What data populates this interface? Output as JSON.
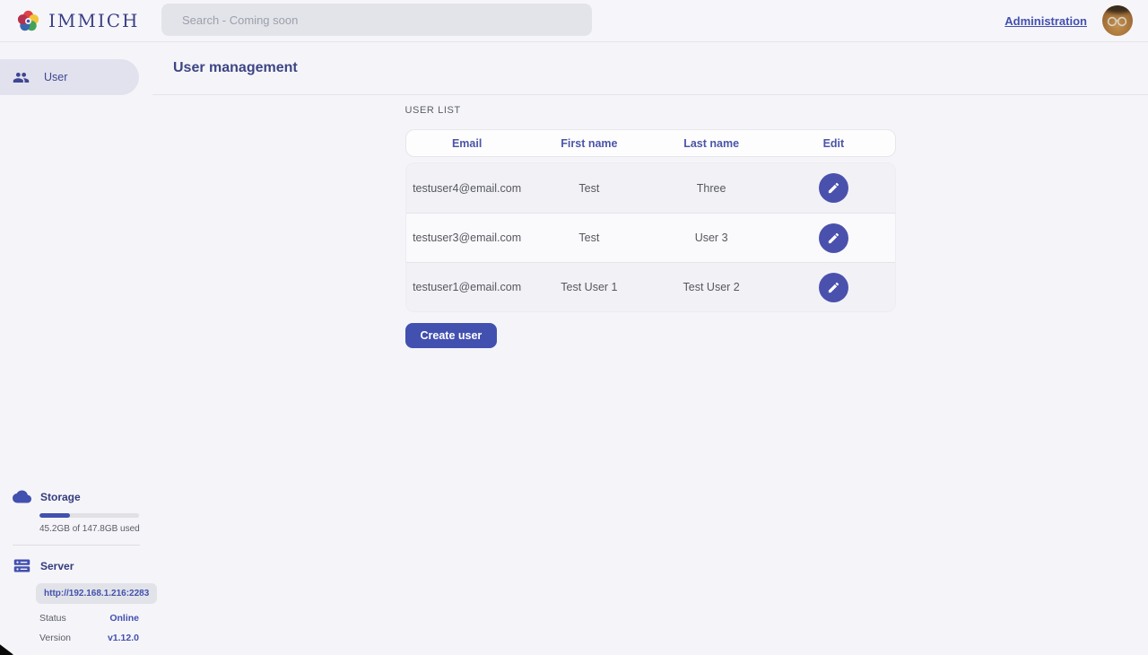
{
  "header": {
    "logo_text": "IMMICH",
    "search_placeholder": "Search - Coming soon",
    "admin_link": "Administration"
  },
  "sidebar": {
    "items": [
      {
        "label": "User"
      }
    ],
    "storage": {
      "title": "Storage",
      "usage_text": "45.2GB of 147.8GB used",
      "percent_used": 31
    },
    "server": {
      "title": "Server",
      "url": "http://192.168.1.216:2283",
      "status_label": "Status",
      "status_value": "Online",
      "version_label": "Version",
      "version_value": "v1.12.0"
    }
  },
  "main": {
    "page_title": "User management",
    "section_title": "USER LIST",
    "table": {
      "columns": [
        "Email",
        "First name",
        "Last name",
        "Edit"
      ],
      "rows": [
        {
          "email": "testuser4@email.com",
          "first_name": "Test",
          "last_name": "Three"
        },
        {
          "email": "testuser3@email.com",
          "first_name": "Test",
          "last_name": "User 3"
        },
        {
          "email": "testuser1@email.com",
          "first_name": "Test User 1",
          "last_name": "Test User 2"
        }
      ]
    },
    "create_button_label": "Create user"
  },
  "colors": {
    "primary": "#4250af",
    "background": "#f5f5f9",
    "status_online": "#4250af"
  }
}
